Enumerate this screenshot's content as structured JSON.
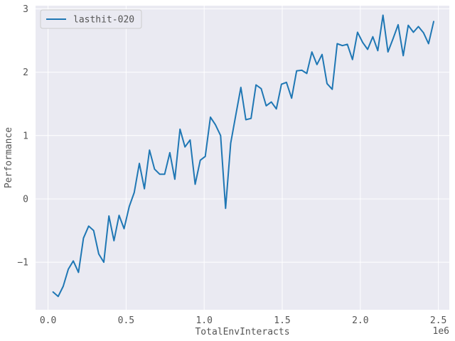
{
  "chart_data": {
    "type": "line",
    "xlabel": "TotalEnvInteracts",
    "ylabel": "Performance",
    "x_offset_label": "1e6",
    "xlim": [
      -0.08,
      2.57
    ],
    "ylim": [
      -1.75,
      3.05
    ],
    "x_ticks": [
      0.0,
      0.5,
      1.0,
      1.5,
      2.0,
      2.5
    ],
    "x_tick_labels": [
      "0.0",
      "0.5",
      "1.0",
      "1.5",
      "2.0",
      "2.5"
    ],
    "y_ticks": [
      -1,
      0,
      1,
      2,
      3
    ],
    "y_tick_labels": [
      "−1",
      "0",
      "1",
      "2",
      "3"
    ],
    "grid": true,
    "legend_position": "top-left",
    "series": [
      {
        "name": "lasthit-020",
        "color": "#1f77b4",
        "x": [
          0.032,
          0.065,
          0.097,
          0.13,
          0.162,
          0.195,
          0.227,
          0.26,
          0.292,
          0.325,
          0.357,
          0.39,
          0.422,
          0.455,
          0.487,
          0.52,
          0.552,
          0.585,
          0.617,
          0.65,
          0.682,
          0.715,
          0.747,
          0.78,
          0.812,
          0.845,
          0.877,
          0.91,
          0.942,
          0.975,
          1.007,
          1.04,
          1.072,
          1.105,
          1.137,
          1.17,
          1.202,
          1.235,
          1.267,
          1.3,
          1.332,
          1.365,
          1.397,
          1.43,
          1.462,
          1.495,
          1.527,
          1.56,
          1.592,
          1.625,
          1.657,
          1.69,
          1.722,
          1.755,
          1.787,
          1.82,
          1.852,
          1.885,
          1.917,
          1.95,
          1.982,
          2.015,
          2.047,
          2.08,
          2.112,
          2.145,
          2.177,
          2.21,
          2.242,
          2.275,
          2.307,
          2.34,
          2.372,
          2.405,
          2.437,
          2.47
        ],
        "values": [
          -1.47,
          -1.54,
          -1.38,
          -1.11,
          -0.98,
          -1.16,
          -0.62,
          -0.43,
          -0.5,
          -0.87,
          -1.0,
          -0.27,
          -0.66,
          -0.26,
          -0.47,
          -0.12,
          0.1,
          0.56,
          0.16,
          0.77,
          0.47,
          0.39,
          0.39,
          0.73,
          0.31,
          1.1,
          0.82,
          0.93,
          0.23,
          0.61,
          0.67,
          1.29,
          1.17,
          1.0,
          -0.15,
          0.88,
          1.32,
          1.76,
          1.25,
          1.27,
          1.8,
          1.74,
          1.47,
          1.53,
          1.42,
          1.81,
          1.84,
          1.59,
          2.02,
          2.03,
          1.98,
          2.32,
          2.12,
          2.28,
          1.82,
          1.73,
          2.45,
          2.42,
          2.44,
          2.2,
          2.63,
          2.47,
          2.36,
          2.56,
          2.34,
          2.9,
          2.32,
          2.53,
          2.75,
          2.26,
          2.74,
          2.63,
          2.72,
          2.62,
          2.45,
          2.8
        ]
      }
    ]
  }
}
